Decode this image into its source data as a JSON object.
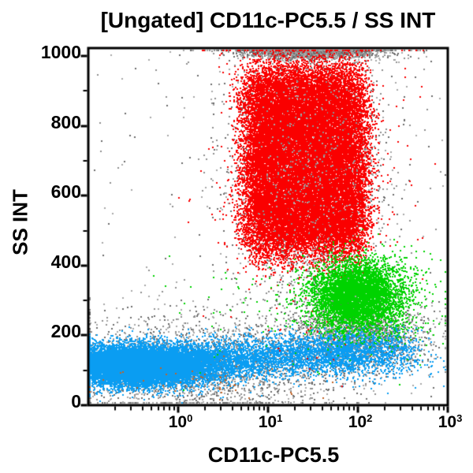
{
  "chart_data": {
    "type": "scatter",
    "title": "[Ungated] CD11c-PC5.5 / SS INT",
    "xlabel": "CD11c-PC5.5",
    "ylabel": "SS INT",
    "x_scale": "log",
    "x_range": [
      0.1,
      1000
    ],
    "x_ticks": [
      {
        "base": "10",
        "exp": "0",
        "value": 1
      },
      {
        "base": "10",
        "exp": "1",
        "value": 10
      },
      {
        "base": "10",
        "exp": "2",
        "value": 100
      },
      {
        "base": "10",
        "exp": "3",
        "value": 1000
      }
    ],
    "x_minor_mantissas": [
      2,
      3,
      4,
      5,
      6,
      7,
      8,
      9
    ],
    "y_scale": "linear",
    "y_range": [
      0,
      1023
    ],
    "y_ticks": [
      {
        "label": "0",
        "value": 0
      },
      {
        "label": "200",
        "value": 200
      },
      {
        "label": "400",
        "value": 400
      },
      {
        "label": "600",
        "value": 600
      },
      {
        "label": "800",
        "value": 800
      },
      {
        "label": "1000",
        "value": 1000
      }
    ],
    "y_minor_step": 100,
    "grid": false,
    "legend": false,
    "axis_color": "#000000",
    "background_color": "#ffffff",
    "palette": {
      "red": "#fa0000",
      "green": "#00d300",
      "blue": "#0a9df2",
      "gray": [
        "#a8a8a8",
        "#8f8f8f",
        "#6b6b6b"
      ],
      "orange": "#c06428"
    },
    "populations": [
      {
        "name": "gray-debris-low",
        "colors": [
          "#a8a8a8",
          "#8f8f8f",
          "#6b6b6b"
        ],
        "n": 2600,
        "x": {
          "dist": "normal",
          "mean": 0.25,
          "sigma": 0.85,
          "min": -1,
          "max": 3
        },
        "y": {
          "dist": "normal",
          "mean": 112,
          "sigma": 68,
          "min": 2,
          "max": 1023
        }
      },
      {
        "name": "gray-mid-band",
        "colors": [
          "#a8a8a8",
          "#8f8f8f",
          "#6b6b6b"
        ],
        "n": 1800,
        "x": {
          "dist": "normal",
          "mean": 2.0,
          "sigma": 0.38,
          "min": -1,
          "max": 3
        },
        "y": {
          "dist": "normal",
          "mean": 200,
          "sigma": 50,
          "min": 2,
          "max": 1023
        }
      },
      {
        "name": "gray-red-halo",
        "colors": [
          "#a8a8a8",
          "#8f8f8f",
          "#6b6b6b"
        ],
        "n": 2400,
        "x": {
          "dist": "normal",
          "mean": 1.44,
          "sigma": 0.45,
          "min": -1,
          "max": 3
        },
        "y": {
          "dist": "normal",
          "mean": 695,
          "sigma": 215,
          "min": 2,
          "max": 1023
        }
      },
      {
        "name": "gray-top-pileup",
        "colors": [
          "#a8a8a8",
          "#8f8f8f",
          "#6b6b6b"
        ],
        "n": 2200,
        "x": {
          "dist": "normal",
          "mean": 1.48,
          "sigma": 0.38,
          "min": -1,
          "max": 3
        },
        "y": {
          "dist": "edgehigh",
          "max": 1023,
          "scale": 14,
          "min": 2
        }
      },
      {
        "name": "gray-background",
        "colors": [
          "#a8a8a8",
          "#8f8f8f",
          "#6b6b6b"
        ],
        "n": 240,
        "x": {
          "dist": "uniform",
          "min": -1,
          "max": 3
        },
        "y": {
          "dist": "uniform",
          "min": 2,
          "max": 1023
        }
      },
      {
        "name": "blue-lymph-tail",
        "colors": [
          "#0a9df2"
        ],
        "n": 2900,
        "x": {
          "dist": "uniform",
          "min": 0.02,
          "max": 1.95
        },
        "y": {
          "dist": "normal",
          "mean": 122,
          "sigma": 30,
          "slope": 16,
          "min": 2,
          "max": 1023
        }
      },
      {
        "name": "blue-right-blob",
        "colors": [
          "#0a9df2"
        ],
        "n": 1200,
        "x": {
          "dist": "normal",
          "mean": 2.12,
          "sigma": 0.3,
          "min": -1,
          "max": 3
        },
        "y": {
          "dist": "normal",
          "mean": 152,
          "sigma": 36,
          "min": 2,
          "max": 1023
        }
      },
      {
        "name": "blue-core",
        "colors": [
          "#0a9df2"
        ],
        "n": 14000,
        "x": {
          "dist": "normal",
          "mean": -0.45,
          "sigma": 0.43,
          "min": -0.995,
          "max": 3
        },
        "y": {
          "dist": "normal",
          "mean": 114,
          "sigma": 28,
          "min": 2,
          "max": 1023
        }
      },
      {
        "name": "green-outliers",
        "colors": [
          "#00d300"
        ],
        "n": 130,
        "x": {
          "dist": "normal",
          "mean": 1.5,
          "sigma": 0.75,
          "min": -1,
          "max": 3
        },
        "y": {
          "dist": "normal",
          "mean": 280,
          "sigma": 90,
          "min": 2,
          "max": 1023
        }
      },
      {
        "name": "red-halo",
        "colors": [
          "#fa0000"
        ],
        "n": 800,
        "x": {
          "dist": "normal",
          "mean": 1.4,
          "sigma": 0.52,
          "min": -1,
          "max": 3
        },
        "y": {
          "dist": "normal",
          "mean": 690,
          "sigma": 210,
          "min": 2,
          "max": 1023
        }
      },
      {
        "name": "red-granulocytes",
        "colors": [
          "#fa0000"
        ],
        "n": 27000,
        "x": {
          "dist": "uniformsoft",
          "min": 0.8,
          "max": 2.02,
          "edge": 0.1
        },
        "y": {
          "dist": "uniformsoft",
          "min": 462,
          "max": 935,
          "edge": 42,
          "clampmax": 1023
        }
      },
      {
        "name": "green-cluster",
        "colors": [
          "#00d300"
        ],
        "n": 5000,
        "x": {
          "dist": "normal",
          "mean": 1.98,
          "sigma": 0.245,
          "min": -1,
          "max": 3
        },
        "y": {
          "dist": "normal",
          "mean": 316,
          "sigma": 48,
          "min": 2,
          "max": 1023
        }
      },
      {
        "name": "green-right-tail",
        "colors": [
          "#00d300"
        ],
        "n": 260,
        "x": {
          "dist": "normal",
          "mean": 2.42,
          "sigma": 0.22,
          "min": -1,
          "max": 3
        },
        "y": {
          "dist": "normal",
          "mean": 300,
          "sigma": 70,
          "min": 2,
          "max": 1023
        }
      },
      {
        "name": "gray-over-red",
        "colors": [
          "#a8a8a8",
          "#8f8f8f"
        ],
        "n": 400,
        "x": {
          "dist": "normal",
          "mean": 1.44,
          "sigma": 0.4,
          "min": -1,
          "max": 3
        },
        "y": {
          "dist": "normal",
          "mean": 690,
          "sigma": 190,
          "min": 2,
          "max": 1023
        }
      },
      {
        "name": "orange-rare",
        "colors": [
          "#c06428"
        ],
        "n": 45,
        "x": {
          "dist": "normal",
          "mean": 0.3,
          "sigma": 0.75,
          "min": -1,
          "max": 3
        },
        "y": {
          "dist": "normal",
          "mean": 68,
          "sigma": 30,
          "min": 2,
          "max": 1023
        }
      }
    ]
  }
}
